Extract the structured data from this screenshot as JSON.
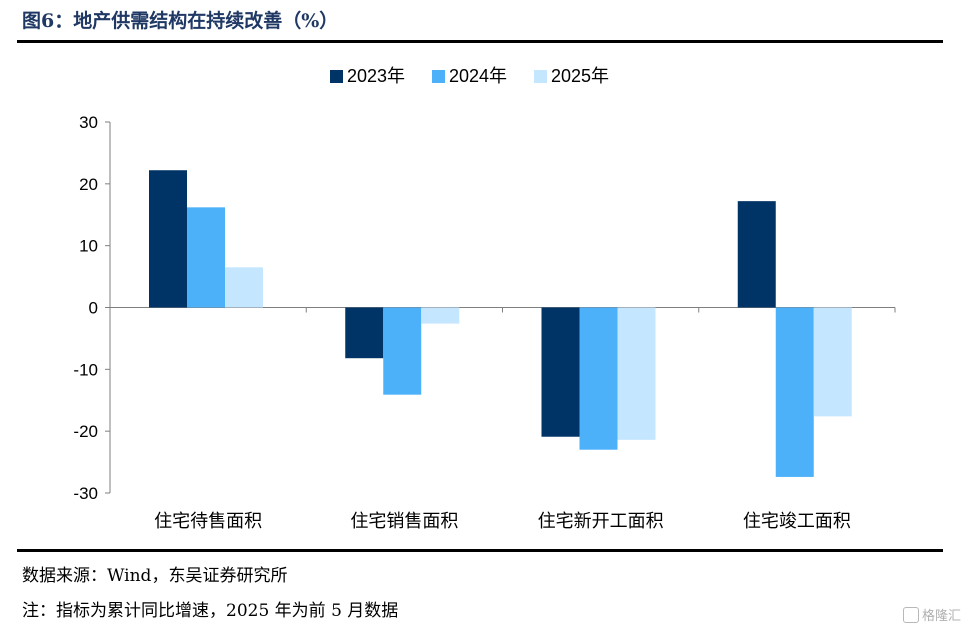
{
  "figure": {
    "title": "图6：地产供需结构在持续改善（%）",
    "source": "数据来源：Wind，东吴证券研究所",
    "note": "注：指标为累计同比增速，2025 年为前 5 月数据",
    "watermark": "格隆汇"
  },
  "chart_data": {
    "type": "bar",
    "categories": [
      "住宅待售面积",
      "住宅销售面积",
      "住宅新开工面积",
      "住宅竣工面积"
    ],
    "series": [
      {
        "name": "2023年",
        "values": [
          22.2,
          -8.2,
          -20.9,
          17.2
        ],
        "color": "#003366"
      },
      {
        "name": "2024年",
        "values": [
          16.2,
          -14.1,
          -23.0,
          -27.4
        ],
        "color": "#4db1fa"
      },
      {
        "name": "2025年",
        "values": [
          6.5,
          -2.6,
          -21.4,
          -17.6
        ],
        "color": "#c5e6ff"
      }
    ],
    "ylim": [
      -30,
      30
    ],
    "yticks": [
      30,
      20,
      10,
      0,
      -10,
      -20,
      -30
    ],
    "legend_position": "top-center",
    "grid": false
  }
}
